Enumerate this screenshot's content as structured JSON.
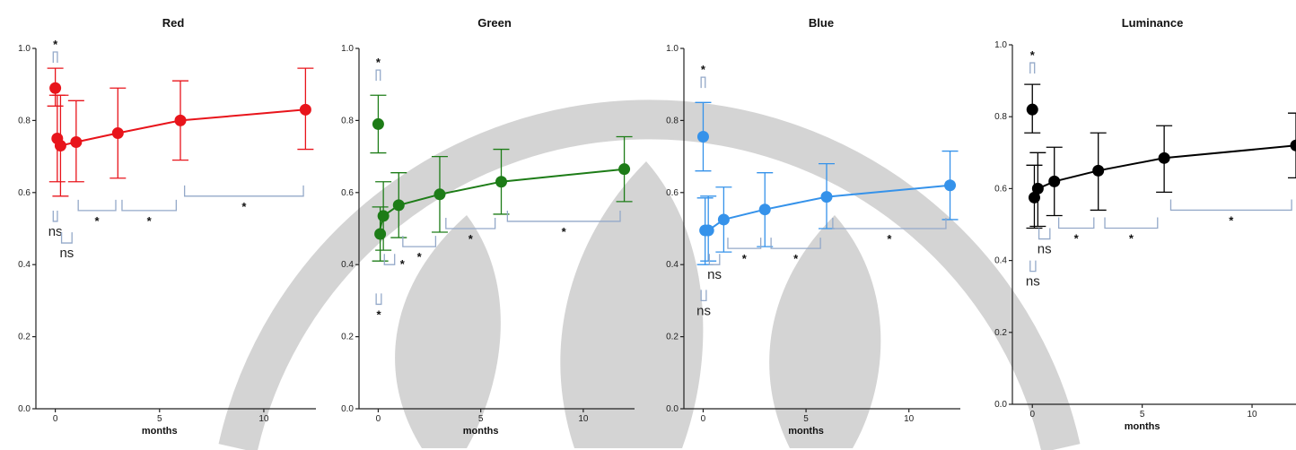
{
  "colors": {
    "watermark": "#d4d4d4",
    "bracket": "#94a9c9",
    "axis": "#222222"
  },
  "chart_data": [
    {
      "type": "line",
      "title": "Red",
      "xlabel": "months",
      "ylabel": "",
      "color": "#e8141b",
      "xlim": [
        -0.5,
        12.5
      ],
      "ylim": [
        0,
        1.0
      ],
      "xticks": [
        0,
        5,
        10
      ],
      "yticks": [
        0.0,
        0.2,
        0.4,
        0.6,
        0.8,
        1.0
      ],
      "yticklabels": [
        "0.0",
        "0.2",
        "0.4",
        "0.6",
        "0.8",
        "1.0"
      ],
      "series": [
        {
          "points": [
            {
              "x": 0,
              "y": 0.89,
              "lo": 0.84,
              "hi": 0.945
            },
            {
              "x": 0.03,
              "y": 0.75,
              "lo": 0.63,
              "hi": 0.87
            },
            {
              "x": 0.25,
              "y": 0.73,
              "lo": 0.59,
              "hi": 0.87
            },
            {
              "x": 1,
              "y": 0.74,
              "lo": 0.63,
              "hi": 0.855
            },
            {
              "x": 3,
              "y": 0.765,
              "lo": 0.64,
              "hi": 0.89
            },
            {
              "x": 6,
              "y": 0.8,
              "lo": 0.69,
              "hi": 0.91
            },
            {
              "x": 12,
              "y": 0.83,
              "lo": 0.72,
              "hi": 0.945
            }
          ]
        }
      ],
      "annotations": [
        {
          "type": "bracket",
          "x1": -0.1,
          "x2": 0.1,
          "y": 0.99,
          "dir": "up",
          "label": "*",
          "label_pos": "above"
        },
        {
          "type": "bracket",
          "x1": -0.1,
          "x2": 0.1,
          "y": 0.52,
          "dir": "down",
          "label": "ns",
          "label_pos": "below"
        },
        {
          "type": "bracket",
          "x1": 0.3,
          "x2": 0.8,
          "y": 0.46,
          "dir": "down",
          "label": "ns",
          "label_pos": "below"
        },
        {
          "type": "bracket",
          "x1": 1.1,
          "x2": 2.9,
          "y": 0.55,
          "dir": "down",
          "label": "*",
          "label_pos": "below"
        },
        {
          "type": "bracket",
          "x1": 3.2,
          "x2": 5.8,
          "y": 0.55,
          "dir": "down",
          "label": "*",
          "label_pos": "below"
        },
        {
          "type": "bracket",
          "x1": 6.2,
          "x2": 11.9,
          "y": 0.59,
          "dir": "down",
          "label": "*",
          "label_pos": "below"
        }
      ]
    },
    {
      "type": "line",
      "title": "Green",
      "xlabel": "months",
      "ylabel": "",
      "color": "#1d7c17",
      "xlim": [
        -0.5,
        12.5
      ],
      "ylim": [
        0,
        1.0
      ],
      "xticks": [
        0,
        5,
        10
      ],
      "yticks": [
        0.0,
        0.2,
        0.4,
        0.6,
        0.8,
        1.0
      ],
      "yticklabels": [
        "0.0",
        "0.2",
        "0.4",
        "0.6",
        "0.8",
        "1.0"
      ],
      "series": [
        {
          "points": [
            {
              "x": 0,
              "y": 0.79,
              "lo": 0.71,
              "hi": 0.87
            },
            {
              "x": 0.03,
              "y": 0.485,
              "lo": 0.41,
              "hi": 0.56
            },
            {
              "x": 0.25,
              "y": 0.535,
              "lo": 0.44,
              "hi": 0.63
            },
            {
              "x": 1,
              "y": 0.565,
              "lo": 0.475,
              "hi": 0.655
            },
            {
              "x": 3,
              "y": 0.595,
              "lo": 0.49,
              "hi": 0.7
            },
            {
              "x": 6,
              "y": 0.63,
              "lo": 0.54,
              "hi": 0.72
            },
            {
              "x": 12,
              "y": 0.665,
              "lo": 0.575,
              "hi": 0.755
            }
          ]
        }
      ],
      "annotations": [
        {
          "type": "bracket",
          "x1": -0.1,
          "x2": 0.1,
          "y": 0.94,
          "dir": "up",
          "label": "*",
          "label_pos": "above"
        },
        {
          "type": "bracket",
          "x1": 0.3,
          "x2": 0.8,
          "y": 0.4,
          "dir": "down",
          "label": "*",
          "label_pos": "right"
        },
        {
          "type": "bracket",
          "x1": -0.1,
          "x2": 0.15,
          "y": 0.29,
          "dir": "down",
          "label": "*",
          "label_pos": "below"
        },
        {
          "type": "bracket",
          "x1": 1.2,
          "x2": 2.8,
          "y": 0.45,
          "dir": "down",
          "label": "*",
          "label_pos": "below"
        },
        {
          "type": "bracket",
          "x1": 3.3,
          "x2": 5.7,
          "y": 0.5,
          "dir": "down",
          "label": "*",
          "label_pos": "below"
        },
        {
          "type": "bracket",
          "x1": 6.3,
          "x2": 11.8,
          "y": 0.52,
          "dir": "down",
          "label": "*",
          "label_pos": "below"
        }
      ]
    },
    {
      "type": "line",
      "title": "Blue",
      "xlabel": "months",
      "ylabel": "",
      "color": "#3592ea",
      "xlim": [
        -0.5,
        12.5
      ],
      "ylim": [
        0,
        1.0
      ],
      "xticks": [
        0,
        5,
        10
      ],
      "yticks": [
        0.0,
        0.2,
        0.4,
        0.6,
        0.8,
        1.0
      ],
      "yticklabels": [
        "0.0",
        "0.2",
        "0.4",
        "0.6",
        "0.8",
        "1.0"
      ],
      "series": [
        {
          "points": [
            {
              "x": 0,
              "y": 0.755,
              "lo": 0.66,
              "hi": 0.85
            },
            {
              "x": 0.03,
              "y": 0.495,
              "lo": 0.4,
              "hi": 0.585
            },
            {
              "x": 0.25,
              "y": 0.495,
              "lo": 0.41,
              "hi": 0.59
            },
            {
              "x": 1,
              "y": 0.525,
              "lo": 0.435,
              "hi": 0.615
            },
            {
              "x": 3,
              "y": 0.553,
              "lo": 0.45,
              "hi": 0.655
            },
            {
              "x": 6,
              "y": 0.588,
              "lo": 0.5,
              "hi": 0.68
            },
            {
              "x": 12,
              "y": 0.62,
              "lo": 0.525,
              "hi": 0.715
            }
          ]
        }
      ],
      "annotations": [
        {
          "type": "bracket",
          "x1": -0.1,
          "x2": 0.1,
          "y": 0.92,
          "dir": "up",
          "label": "*",
          "label_pos": "above"
        },
        {
          "type": "bracket",
          "x1": 0.3,
          "x2": 0.8,
          "y": 0.4,
          "dir": "down",
          "label": "ns",
          "label_pos": "below"
        },
        {
          "type": "bracket",
          "x1": -0.1,
          "x2": 0.15,
          "y": 0.3,
          "dir": "down",
          "label": "ns",
          "label_pos": "below"
        },
        {
          "type": "bracket",
          "x1": 1.2,
          "x2": 2.8,
          "y": 0.445,
          "dir": "down",
          "label": "*",
          "label_pos": "below"
        },
        {
          "type": "bracket",
          "x1": 3.3,
          "x2": 5.7,
          "y": 0.445,
          "dir": "down",
          "label": "*",
          "label_pos": "below"
        },
        {
          "type": "bracket",
          "x1": 6.3,
          "x2": 11.8,
          "y": 0.5,
          "dir": "down",
          "label": "*",
          "label_pos": "below"
        }
      ]
    },
    {
      "type": "line",
      "title": "Luminance",
      "xlabel": "months",
      "ylabel": "",
      "color": "#000000",
      "xlim": [
        -0.5,
        12.0
      ],
      "ylim": [
        0,
        1.0
      ],
      "xticks": [
        0,
        5,
        10
      ],
      "yticks": [
        0.0,
        0.2,
        0.4,
        0.6,
        0.8,
        1.0
      ],
      "yticklabels": [
        "0.0",
        "0.2",
        "0.4",
        "0.6",
        "0.8",
        "1.0"
      ],
      "series": [
        {
          "points": [
            {
              "x": 0,
              "y": 0.82,
              "lo": 0.755,
              "hi": 0.89
            },
            {
              "x": 0.03,
              "y": 0.575,
              "lo": 0.49,
              "hi": 0.665
            },
            {
              "x": 0.25,
              "y": 0.6,
              "lo": 0.495,
              "hi": 0.7
            },
            {
              "x": 1,
              "y": 0.62,
              "lo": 0.525,
              "hi": 0.715
            },
            {
              "x": 3,
              "y": 0.65,
              "lo": 0.54,
              "hi": 0.755
            },
            {
              "x": 6,
              "y": 0.685,
              "lo": 0.59,
              "hi": 0.775
            },
            {
              "x": 12,
              "y": 0.72,
              "lo": 0.63,
              "hi": 0.81
            }
          ]
        }
      ],
      "annotations": [
        {
          "type": "bracket",
          "x1": -0.1,
          "x2": 0.1,
          "y": 0.95,
          "dir": "up",
          "label": "*",
          "label_pos": "above"
        },
        {
          "type": "bracket",
          "x1": 0.3,
          "x2": 0.8,
          "y": 0.46,
          "dir": "down",
          "label": "ns",
          "label_pos": "below"
        },
        {
          "type": "bracket",
          "x1": -0.1,
          "x2": 0.15,
          "y": 0.37,
          "dir": "down",
          "label": "ns",
          "label_pos": "below"
        },
        {
          "type": "bracket",
          "x1": 1.2,
          "x2": 2.8,
          "y": 0.49,
          "dir": "down",
          "label": "*",
          "label_pos": "below"
        },
        {
          "type": "bracket",
          "x1": 3.3,
          "x2": 5.7,
          "y": 0.49,
          "dir": "down",
          "label": "*",
          "label_pos": "below"
        },
        {
          "type": "bracket",
          "x1": 6.3,
          "x2": 11.8,
          "y": 0.54,
          "dir": "down",
          "label": "*",
          "label_pos": "below"
        }
      ]
    }
  ]
}
